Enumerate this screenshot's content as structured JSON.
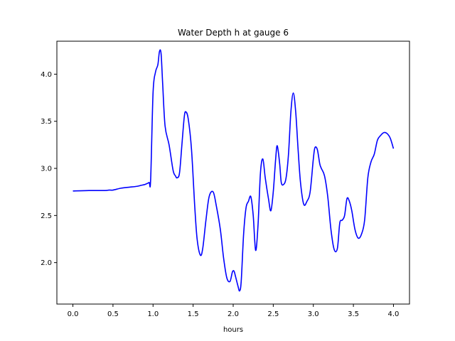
{
  "chart_data": {
    "type": "line",
    "title": "Water Depth h at gauge 6",
    "xlabel": "hours",
    "ylabel": "",
    "xlim": [
      -0.2,
      4.2
    ],
    "ylim": [
      1.56,
      4.35
    ],
    "xticks": [
      0.0,
      0.5,
      1.0,
      1.5,
      2.0,
      2.5,
      3.0,
      3.5,
      4.0
    ],
    "xtick_labels": [
      "0.0",
      "0.5",
      "1.0",
      "1.5",
      "2.0",
      "2.5",
      "3.0",
      "3.5",
      "4.0"
    ],
    "yticks": [
      2.0,
      2.5,
      3.0,
      3.5,
      4.0
    ],
    "ytick_labels": [
      "2.0",
      "2.5",
      "3.0",
      "3.5",
      "4.0"
    ],
    "grid": false,
    "series": [
      {
        "color": "#0000ff",
        "x": [
          0.0,
          0.2,
          0.4,
          0.45,
          0.5,
          0.6,
          0.7,
          0.8,
          0.85,
          0.9,
          0.95,
          0.97,
          1.0,
          1.03,
          1.06,
          1.08,
          1.1,
          1.12,
          1.15,
          1.2,
          1.25,
          1.28,
          1.3,
          1.33,
          1.36,
          1.39,
          1.41,
          1.44,
          1.48,
          1.52,
          1.55,
          1.59,
          1.62,
          1.66,
          1.7,
          1.75,
          1.79,
          1.84,
          1.88,
          1.92,
          1.96,
          1.99,
          2.01,
          2.03,
          2.06,
          2.08,
          2.1,
          2.13,
          2.16,
          2.19,
          2.22,
          2.25,
          2.28,
          2.31,
          2.34,
          2.37,
          2.4,
          2.44,
          2.47,
          2.5,
          2.53,
          2.55,
          2.58,
          2.6,
          2.63,
          2.66,
          2.69,
          2.72,
          2.75,
          2.78,
          2.81,
          2.84,
          2.88,
          2.92,
          2.96,
          3.0,
          3.02,
          3.05,
          3.08,
          3.1,
          3.14,
          3.18,
          3.22,
          3.26,
          3.3,
          3.33,
          3.36,
          3.39,
          3.42,
          3.45,
          3.48,
          3.52,
          3.56,
          3.6,
          3.64,
          3.68,
          3.72,
          3.76,
          3.8,
          3.84,
          3.88,
          3.92,
          3.96,
          4.0
        ],
        "y": [
          2.76,
          2.765,
          2.765,
          2.77,
          2.77,
          2.79,
          2.8,
          2.81,
          2.82,
          2.83,
          2.85,
          2.88,
          3.8,
          4.02,
          4.1,
          4.24,
          4.22,
          3.9,
          3.45,
          3.25,
          2.98,
          2.92,
          2.9,
          2.95,
          3.25,
          3.55,
          3.6,
          3.52,
          3.2,
          2.6,
          2.25,
          2.08,
          2.15,
          2.45,
          2.7,
          2.75,
          2.6,
          2.35,
          2.05,
          1.84,
          1.8,
          1.9,
          1.91,
          1.85,
          1.75,
          1.7,
          1.8,
          2.3,
          2.58,
          2.65,
          2.7,
          2.5,
          2.13,
          2.4,
          2.95,
          3.1,
          2.9,
          2.68,
          2.55,
          2.75,
          3.1,
          3.24,
          3.05,
          2.85,
          2.83,
          2.9,
          3.15,
          3.6,
          3.8,
          3.6,
          3.2,
          2.85,
          2.62,
          2.65,
          2.75,
          3.1,
          3.22,
          3.2,
          3.05,
          3.0,
          2.92,
          2.7,
          2.35,
          2.14,
          2.15,
          2.42,
          2.45,
          2.5,
          2.68,
          2.65,
          2.55,
          2.35,
          2.26,
          2.3,
          2.45,
          2.9,
          3.07,
          3.15,
          3.3,
          3.35,
          3.38,
          3.37,
          3.32,
          3.21
        ]
      }
    ]
  }
}
